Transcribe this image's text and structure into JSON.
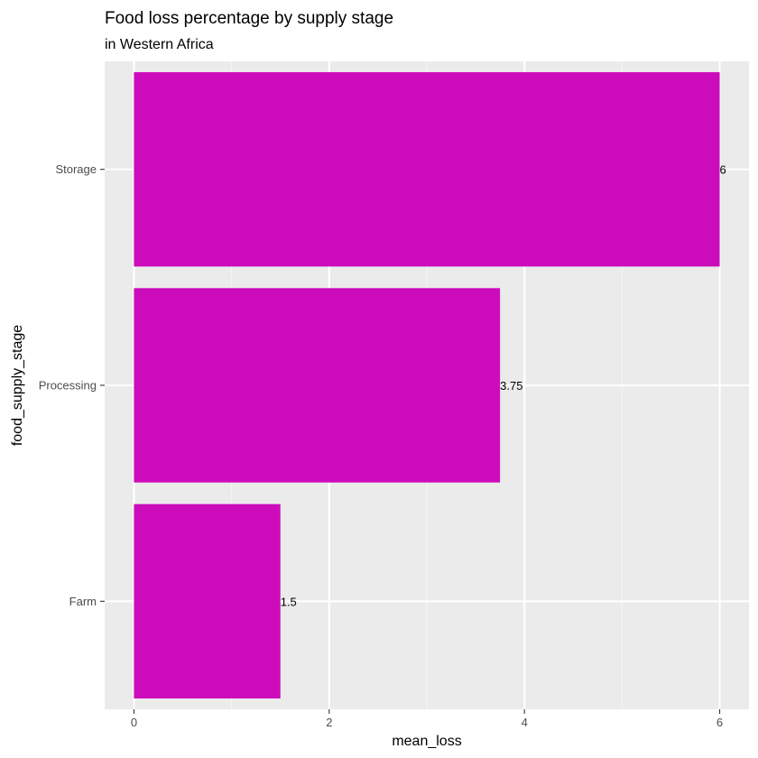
{
  "chart_data": {
    "type": "bar",
    "orientation": "horizontal",
    "title": "Food loss percentage by supply stage",
    "subtitle": "in Western Africa",
    "xlabel": "mean_loss",
    "ylabel": "food_supply_stage",
    "categories": [
      "Farm",
      "Processing",
      "Storage"
    ],
    "values": [
      1.5,
      3.75,
      6
    ],
    "data_labels": [
      "1.5",
      "3.75",
      "6"
    ],
    "x_ticks": [
      0,
      2,
      4,
      6
    ],
    "x_tick_labels": [
      "0",
      "2",
      "4",
      "6"
    ],
    "xlim": [
      -0.3,
      6.3
    ],
    "grid": true,
    "colors": {
      "bar": "#CC0CBB",
      "panel_background": "#EBEBEB",
      "grid_major": "#FFFFFF",
      "grid_minor": "#F5F5F5"
    }
  }
}
